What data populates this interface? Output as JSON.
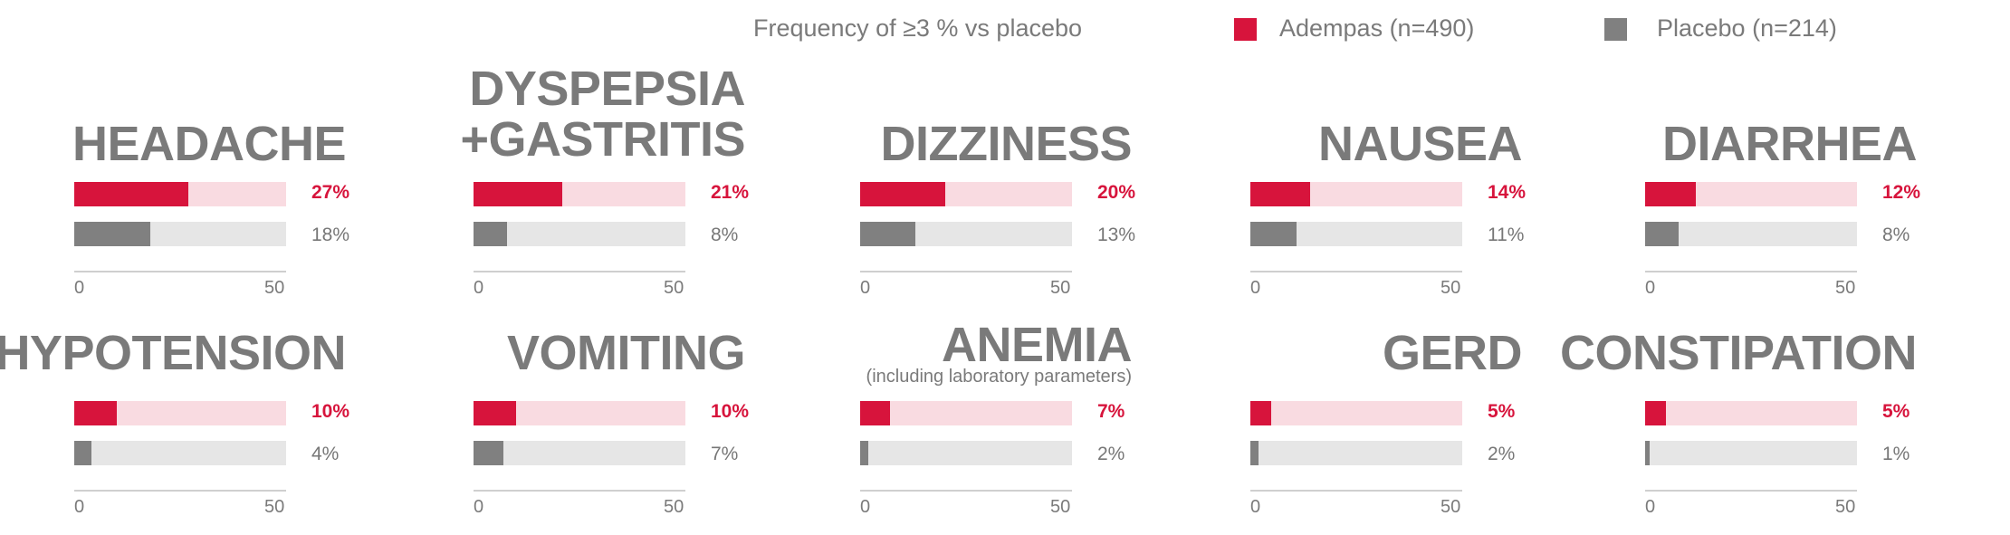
{
  "legend": {
    "caption": "Frequency of ≥3 % vs placebo",
    "series": [
      {
        "name": "Adempas (n=490)",
        "color": "#d7143c"
      },
      {
        "name": "Placebo (n=214)",
        "color": "#808080"
      }
    ]
  },
  "colors": {
    "adempas": "#d7143c",
    "adempas_track": "#f9dbe1",
    "placebo": "#808080",
    "placebo_track": "#e6e6e6",
    "axis": "#cfcfcf"
  },
  "chart_data": {
    "type": "bar",
    "orientation": "horizontal",
    "title": "Frequency of ≥3 % vs placebo",
    "xlim": [
      0,
      50
    ],
    "ticks": [
      "0",
      "50"
    ],
    "unit": "%",
    "series_names": [
      "Adempas (n=490)",
      "Placebo (n=214)"
    ],
    "panels": [
      {
        "name": "HEADACHE",
        "adempas": 27,
        "placebo": 18,
        "adempas_label": "27%",
        "placebo_label": "18%"
      },
      {
        "name": "DYSPEPSIA\n+GASTRITIS",
        "line1": "DYSPEPSIA",
        "line2": "+GASTRITIS",
        "adempas": 21,
        "placebo": 8,
        "adempas_label": "21%",
        "placebo_label": "8%"
      },
      {
        "name": "DIZZINESS",
        "adempas": 20,
        "placebo": 13,
        "adempas_label": "20%",
        "placebo_label": "13%"
      },
      {
        "name": "NAUSEA",
        "adempas": 14,
        "placebo": 11,
        "adempas_label": "14%",
        "placebo_label": "11%"
      },
      {
        "name": "DIARRHEA",
        "adempas": 12,
        "placebo": 8,
        "adempas_label": "12%",
        "placebo_label": "8%"
      },
      {
        "name": "HYPOTENSION",
        "adempas": 10,
        "placebo": 4,
        "adempas_label": "10%",
        "placebo_label": "4%"
      },
      {
        "name": "VOMITING",
        "adempas": 10,
        "placebo": 7,
        "adempas_label": "10%",
        "placebo_label": "7%"
      },
      {
        "name": "ANEMIA",
        "subtitle": "(including laboratory parameters)",
        "adempas": 7,
        "placebo": 2,
        "adempas_label": "7%",
        "placebo_label": "2%"
      },
      {
        "name": "GERD",
        "adempas": 5,
        "placebo": 2,
        "adempas_label": "5%",
        "placebo_label": "2%"
      },
      {
        "name": "CONSTIPATION",
        "adempas": 5,
        "placebo": 1,
        "adempas_label": "5%",
        "placebo_label": "1%"
      }
    ]
  }
}
